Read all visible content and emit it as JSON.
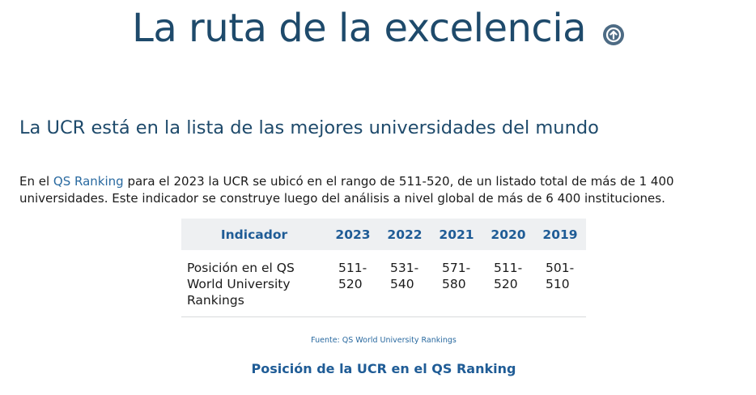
{
  "page": {
    "title": "La ruta de la excelencia",
    "title_icon": "arrow-up-circle-icon"
  },
  "section": {
    "heading": "La UCR está en la lista de las mejores universidades del mundo",
    "intro_before_link": "En el ",
    "intro_link": "QS Ranking",
    "intro_after_link": " para el 2023 la UCR se ubicó en el rango de 511-520, de un listado total de más de 1 400 universidades. Este indicador se construye luego del análisis a nivel global de más de  6 400 instituciones."
  },
  "table": {
    "headers": [
      "Indicador",
      "2023",
      "2022",
      "2021",
      "2020",
      "2019"
    ],
    "rows": [
      {
        "indicator": "Posición en el QS World University Rankings",
        "values": [
          "511-520",
          "531-540",
          "571-580",
          "511-520",
          "501-510"
        ]
      }
    ]
  },
  "source_note": "Fuente: QS World University Rankings",
  "chart_caption": "Posición de la UCR en el QS Ranking",
  "colors": {
    "title": "#1e4a6b",
    "accent": "#1f5c96",
    "link": "#2a6aa0",
    "table_header_bg": "#eef0f2"
  }
}
